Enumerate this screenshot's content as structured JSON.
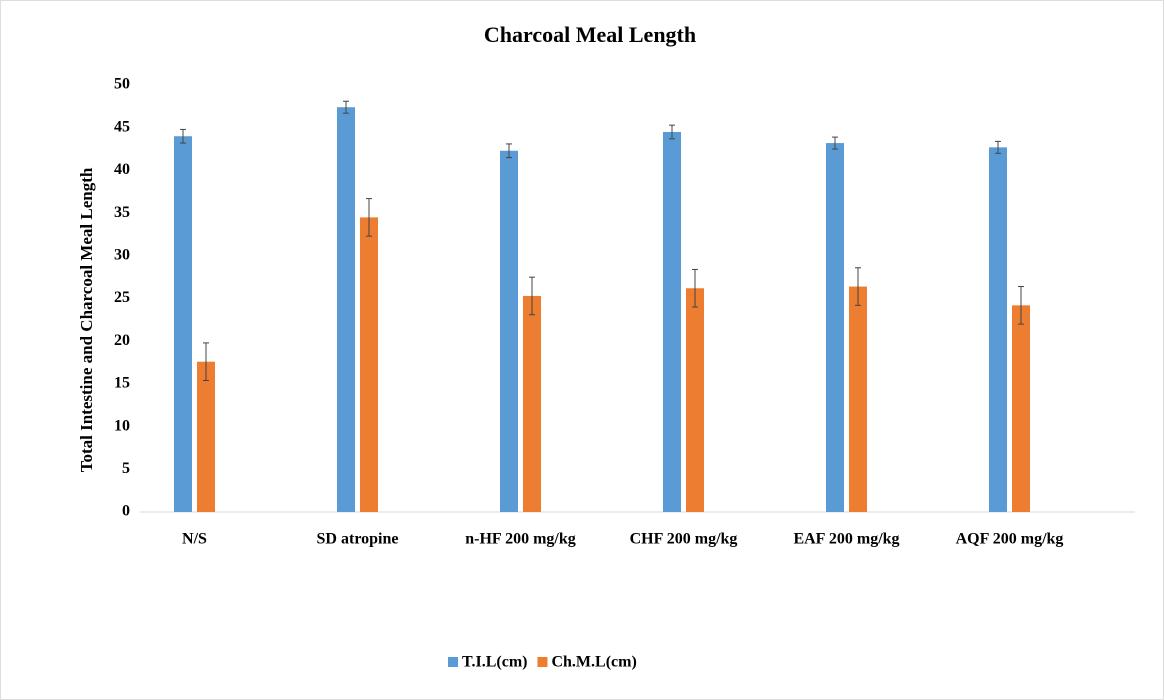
{
  "chart_data": {
    "type": "bar",
    "title": "Charcoal Meal Length",
    "y_label": "Total Intestine and Charcoal Meal Length",
    "categories": [
      "N/S",
      "SD atropine",
      "n-HF 200 mg/kg",
      "CHF 200 mg/kg",
      "EAF 200 mg/kg",
      "AQF 200 mg/kg"
    ],
    "series": [
      {
        "name": "T.I.L(cm)",
        "color": "#5b9bd5",
        "values": [
          44.0,
          47.4,
          42.3,
          44.5,
          43.2,
          42.7
        ],
        "errors": [
          0.8,
          0.7,
          0.8,
          0.8,
          0.7,
          0.7
        ]
      },
      {
        "name": "Ch.M.L(cm)",
        "color": "#ed7d31",
        "values": [
          17.6,
          34.5,
          25.3,
          26.2,
          26.4,
          24.2
        ],
        "errors": [
          2.2,
          2.2,
          2.2,
          2.2,
          2.2,
          2.2
        ]
      }
    ],
    "ylim": [
      0,
      50
    ],
    "yticks": [
      0,
      5,
      10,
      15,
      20,
      25,
      30,
      35,
      40,
      45,
      50
    ],
    "legend": "bottom"
  }
}
